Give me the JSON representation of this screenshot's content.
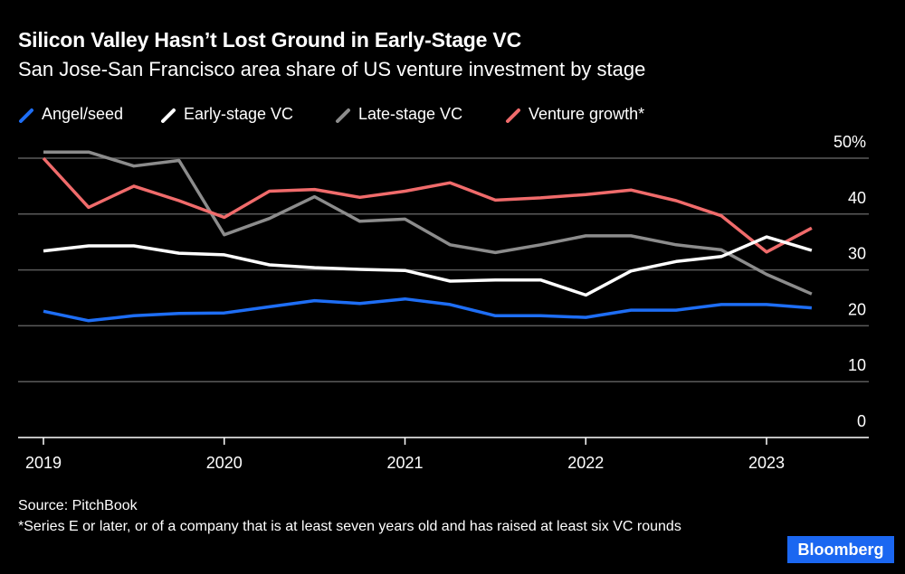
{
  "header": {
    "title": "Silicon Valley Hasn’t Lost Ground in Early-Stage VC",
    "subtitle": "San Jose-San Francisco area share of US venture investment by stage"
  },
  "legend": [
    {
      "label": "Angel/seed",
      "color": "#1e6ef5",
      "icon": "slash-line-icon"
    },
    {
      "label": "Early-stage VC",
      "color": "#ffffff",
      "icon": "slash-line-icon"
    },
    {
      "label": "Late-stage VC",
      "color": "#8c8c8c",
      "icon": "slash-line-icon"
    },
    {
      "label": "Venture growth*",
      "color": "#f06b6b",
      "icon": "slash-line-icon"
    }
  ],
  "chart_data": {
    "type": "line",
    "title": "Silicon Valley Hasn’t Lost Ground in Early-Stage VC",
    "subtitle": "San Jose-San Francisco area share of US venture investment by stage",
    "x": [
      2019.0,
      2019.25,
      2019.5,
      2019.75,
      2020.0,
      2020.25,
      2020.5,
      2020.75,
      2021.0,
      2021.25,
      2021.5,
      2021.75,
      2022.0,
      2022.25,
      2022.5,
      2022.75,
      2023.0,
      2023.25
    ],
    "xlim": [
      2019,
      2023.55
    ],
    "ylim": [
      0,
      50
    ],
    "x_ticks": [
      2019,
      2020,
      2021,
      2022,
      2023
    ],
    "x_tick_labels": [
      "2019",
      "2020",
      "2021",
      "2022",
      "2023"
    ],
    "y_ticks": [
      0,
      10,
      20,
      30,
      40,
      50
    ],
    "y_tick_labels": [
      "0",
      "10",
      "20",
      "30",
      "40",
      "50%"
    ],
    "grid": true,
    "y_axis_side": "right",
    "series": [
      {
        "name": "Angel/seed",
        "color": "#1e6ef5",
        "values": [
          22.6,
          20.9,
          21.8,
          22.2,
          22.3,
          23.4,
          24.5,
          24.0,
          24.8,
          23.8,
          21.8,
          21.8,
          21.5,
          22.8,
          22.8,
          23.8,
          23.8,
          23.2
        ]
      },
      {
        "name": "Early-stage VC",
        "color": "#ffffff",
        "values": [
          33.4,
          34.3,
          34.3,
          33.0,
          32.7,
          30.9,
          30.4,
          30.1,
          29.9,
          28.0,
          28.2,
          28.2,
          25.5,
          29.8,
          31.5,
          32.4,
          35.9,
          33.5
        ]
      },
      {
        "name": "Late-stage VC",
        "color": "#8c8c8c",
        "values": [
          51.1,
          51.1,
          48.6,
          49.6,
          36.3,
          39.2,
          43.1,
          38.7,
          39.1,
          34.5,
          33.1,
          34.5,
          36.1,
          36.1,
          34.5,
          33.6,
          29.2,
          25.7
        ]
      },
      {
        "name": "Venture growth*",
        "color": "#f06b6b",
        "values": [
          50.0,
          41.2,
          45.0,
          42.4,
          39.4,
          44.1,
          44.4,
          43.0,
          44.1,
          45.6,
          42.5,
          42.9,
          43.5,
          44.3,
          42.4,
          39.7,
          33.2,
          37.5
        ]
      }
    ]
  },
  "footer": {
    "source": "Source: PitchBook",
    "note": "*Series E or later, or of a company that is at least seven years old and has raised at least six VC rounds",
    "brand": "Bloomberg"
  }
}
